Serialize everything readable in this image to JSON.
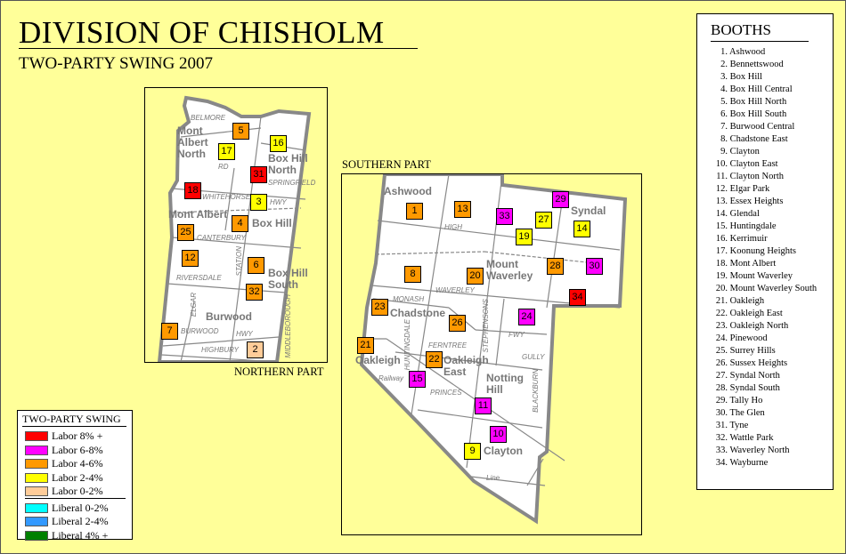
{
  "title": "DIVISION OF CHISHOLM",
  "subtitle": "TWO-PARTY SWING 2007",
  "northern_label": "NORTHERN PART",
  "southern_label": "SOUTHERN PART",
  "colors": {
    "labor_8_plus": "#ff0000",
    "labor_6_8": "#ff00ff",
    "labor_4_6": "#ff9900",
    "labor_2_4": "#ffff00",
    "labor_0_2": "#ffcc99",
    "liberal_0_2": "#00ffff",
    "liberal_2_4": "#3399ff",
    "liberal_4_plus": "#008000",
    "background": "#ffff99"
  },
  "legend": {
    "title": "TWO-PARTY SWING",
    "items": [
      {
        "key": "labor_8_plus",
        "label": "Labor 8% +"
      },
      {
        "key": "labor_6_8",
        "label": "Labor 6-8%"
      },
      {
        "key": "labor_4_6",
        "label": "Labor 4-6%"
      },
      {
        "key": "labor_2_4",
        "label": "Labor 2-4%"
      },
      {
        "key": "labor_0_2",
        "label": "Labor 0-2%"
      },
      {
        "key": "liberal_0_2",
        "label": "Liberal 0-2%"
      },
      {
        "key": "liberal_2_4",
        "label": "Liberal 2-4%"
      },
      {
        "key": "liberal_4_plus",
        "label": "Liberal 4% +"
      }
    ]
  },
  "booths": {
    "title": "BOOTHS",
    "items": [
      {
        "n": "1.",
        "name": "Ashwood",
        "swing": "labor_4_6"
      },
      {
        "n": "2.",
        "name": "Bennettswood",
        "swing": "labor_0_2"
      },
      {
        "n": "3.",
        "name": "Box Hill",
        "swing": "labor_2_4"
      },
      {
        "n": "4.",
        "name": "Box Hill Central",
        "swing": "labor_4_6"
      },
      {
        "n": "5.",
        "name": "Box Hill North",
        "swing": "labor_4_6"
      },
      {
        "n": "6.",
        "name": "Box Hill South",
        "swing": "labor_4_6"
      },
      {
        "n": "7.",
        "name": "Burwood Central",
        "swing": "labor_4_6"
      },
      {
        "n": "8.",
        "name": "Chadstone East",
        "swing": "labor_4_6"
      },
      {
        "n": "9.",
        "name": "Clayton",
        "swing": "labor_2_4"
      },
      {
        "n": "10.",
        "name": "Clayton East",
        "swing": "labor_6_8"
      },
      {
        "n": "11.",
        "name": "Clayton North",
        "swing": "labor_6_8"
      },
      {
        "n": "12.",
        "name": "Elgar Park",
        "swing": "labor_4_6"
      },
      {
        "n": "13.",
        "name": "Essex Heights",
        "swing": "labor_4_6"
      },
      {
        "n": "14.",
        "name": "Glendal",
        "swing": "labor_2_4"
      },
      {
        "n": "15.",
        "name": "Huntingdale",
        "swing": "labor_6_8"
      },
      {
        "n": "16.",
        "name": "Kerrimuir",
        "swing": "labor_2_4"
      },
      {
        "n": "17.",
        "name": "Koonung Heights",
        "swing": "labor_2_4"
      },
      {
        "n": "18.",
        "name": "Mont Albert",
        "swing": "labor_8_plus"
      },
      {
        "n": "19.",
        "name": "Mount Waverley",
        "swing": "labor_2_4"
      },
      {
        "n": "20.",
        "name": "Mount Waverley South",
        "swing": "labor_4_6"
      },
      {
        "n": "21.",
        "name": "Oakleigh",
        "swing": "labor_4_6"
      },
      {
        "n": "22.",
        "name": "Oakleigh East",
        "swing": "labor_4_6"
      },
      {
        "n": "23.",
        "name": "Oakleigh North",
        "swing": "labor_4_6"
      },
      {
        "n": "24.",
        "name": "Pinewood",
        "swing": "labor_6_8"
      },
      {
        "n": "25.",
        "name": "Surrey Hills",
        "swing": "labor_4_6"
      },
      {
        "n": "26.",
        "name": "Sussex Heights",
        "swing": "labor_4_6"
      },
      {
        "n": "27.",
        "name": "Syndal North",
        "swing": "labor_2_4"
      },
      {
        "n": "28.",
        "name": "Syndal South",
        "swing": "labor_4_6"
      },
      {
        "n": "29.",
        "name": "Tally Ho",
        "swing": "labor_6_8"
      },
      {
        "n": "30.",
        "name": "The Glen",
        "swing": "labor_6_8"
      },
      {
        "n": "31.",
        "name": "Tyne",
        "swing": "labor_8_plus"
      },
      {
        "n": "32.",
        "name": "Wattle Park",
        "swing": "labor_4_6"
      },
      {
        "n": "33.",
        "name": "Waverley North",
        "swing": "labor_6_8"
      },
      {
        "n": "34.",
        "name": "Wayburne",
        "swing": "labor_8_plus"
      }
    ]
  },
  "suburbs": {
    "mont_albert_north": "Mont Albert North",
    "box_hill_north": "Box Hill North",
    "mont_albert": "Mont Albert",
    "box_hill": "Box Hill",
    "box_hill_south": "Box Hill South",
    "burwood": "Burwood",
    "ashwood": "Ashwood",
    "syndal": "Syndal",
    "mount_waverley": "Mount Waverley",
    "chadstone": "Chadstone",
    "oakleigh": "Oakleigh",
    "oakleigh_east": "Oakleigh East",
    "notting_hill": "Notting Hill",
    "clayton": "Clayton"
  },
  "roads": {
    "belmore": "BELMORE",
    "rd1": "RD",
    "springfield": "SPRINGFIELD",
    "whitehorse": "WHITEHORSE",
    "hwy": "HWY",
    "canterbury": "CANTERBURY",
    "riversdale": "RIVERSDALE",
    "station": "STATION",
    "middleborough": "MIDDLEBOROUGH",
    "elgar": "ELGAR",
    "burwood_hwy": "BURWOOD",
    "highbury": "HIGHBURY",
    "high_st": "HIGH",
    "waverley": "WAVERLEY",
    "monash": "MONASH",
    "fwy": "FWY",
    "ferntree": "FERNTREE",
    "gully": "GULLY",
    "huntingdale": "HUNTINGDALE",
    "stephensons": "STEPHENSONS",
    "blackburn": "BLACKBURN",
    "princes": "PRINCES",
    "railway": "Railway",
    "line": "Line"
  }
}
